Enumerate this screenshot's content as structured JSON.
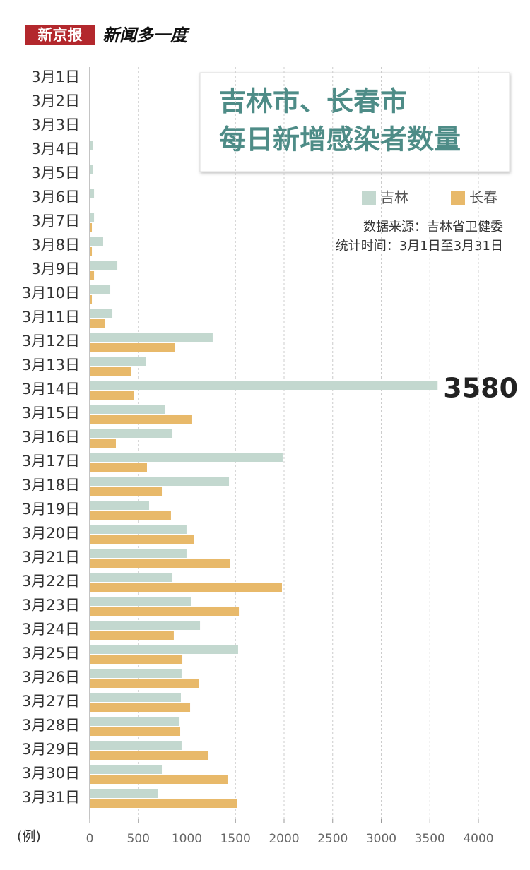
{
  "header": {
    "brand": "新京报",
    "slogan": "新闻多一度"
  },
  "chart_data": {
    "type": "hbar",
    "title": [
      "吉林市、长春市",
      "每日新增感染者数量"
    ],
    "source": "数据来源：吉林省卫健委",
    "period": "统计时间：3月1日至3月31日",
    "unit": "(例)",
    "categories": [
      "3月1日",
      "3月2日",
      "3月3日",
      "3月4日",
      "3月5日",
      "3月6日",
      "3月7日",
      "3月8日",
      "3月9日",
      "3月10日",
      "3月11日",
      "3月12日",
      "3月13日",
      "3月14日",
      "3月15日",
      "3月16日",
      "3月17日",
      "3月18日",
      "3月19日",
      "3月20日",
      "3月21日",
      "3月22日",
      "3月23日",
      "3月24日",
      "3月25日",
      "3月26日",
      "3月27日",
      "3月28日",
      "3月29日",
      "3月30日",
      "3月31日"
    ],
    "series": [
      {
        "name": "吉林",
        "color": "#c3d8cf",
        "values": [
          0,
          0,
          2,
          29,
          36,
          44,
          44,
          138,
          284,
          211,
          233,
          1265,
          575,
          3580,
          771,
          851,
          1985,
          1433,
          611,
          996,
          996,
          851,
          1040,
          1135,
          1527,
          945,
          938,
          924,
          945,
          742,
          698
        ]
      },
      {
        "name": "长春",
        "color": "#e8b96a",
        "values": [
          0,
          0,
          0,
          0,
          0,
          7,
          22,
          22,
          44,
          22,
          160,
          873,
          429,
          458,
          1047,
          269,
          589,
          742,
          836,
          1076,
          1440,
          1978,
          1535,
          865,
          953,
          1127,
          1033,
          931,
          1222,
          1418,
          1520
        ]
      }
    ],
    "xlim": [
      0,
      4000
    ],
    "xticks": [
      0,
      500,
      1000,
      1500,
      2000,
      2500,
      3000,
      3500,
      4000
    ],
    "grid": true
  }
}
